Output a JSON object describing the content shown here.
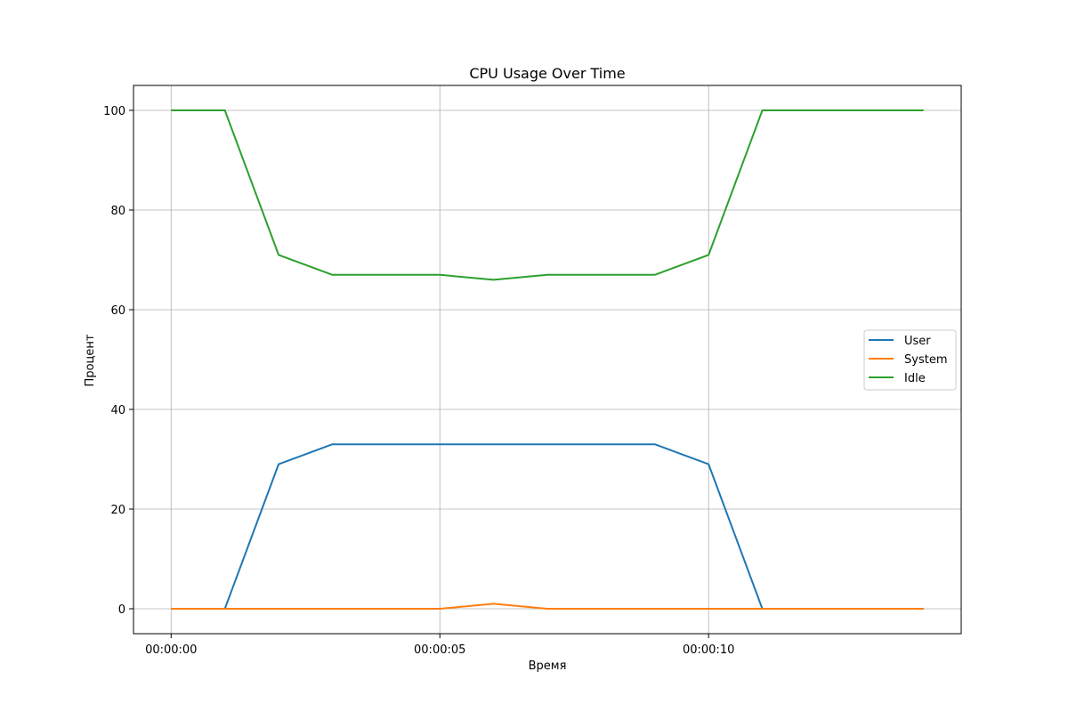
{
  "chart_data": {
    "type": "line",
    "title": "CPU Usage Over Time",
    "xlabel": "Время",
    "ylabel": "Процент",
    "x": [
      0,
      1,
      2,
      3,
      4,
      5,
      6,
      7,
      8,
      9,
      10,
      11,
      12,
      13,
      14
    ],
    "x_ticks": [
      {
        "value": 0,
        "label": "00:00:00"
      },
      {
        "value": 5,
        "label": "00:00:05"
      },
      {
        "value": 10,
        "label": "00:00:10"
      }
    ],
    "y_ticks": [
      0,
      20,
      40,
      60,
      80,
      100
    ],
    "xlim": [
      -0.7,
      14.7
    ],
    "ylim": [
      -5,
      105
    ],
    "grid": true,
    "legend_position": "center-right",
    "series": [
      {
        "name": "User",
        "color": "#1f77b4",
        "values": [
          0,
          0,
          29,
          33,
          33,
          33,
          33,
          33,
          33,
          33,
          29,
          0,
          0,
          0,
          0
        ]
      },
      {
        "name": "System",
        "color": "#ff7f0e",
        "values": [
          0,
          0,
          0,
          0,
          0,
          0,
          1,
          0,
          0,
          0,
          0,
          0,
          0,
          0,
          0
        ]
      },
      {
        "name": "Idle",
        "color": "#2ca02c",
        "values": [
          100,
          100,
          71,
          67,
          67,
          67,
          66,
          67,
          67,
          67,
          71,
          100,
          100,
          100,
          100
        ]
      }
    ]
  }
}
